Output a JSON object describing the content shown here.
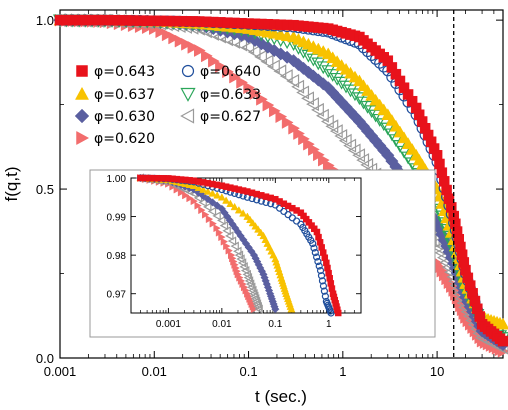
{
  "chart_data": [
    {
      "type": "scatter",
      "xlabel": "t (sec.)",
      "ylabel": "f(q,t)",
      "xscale": "log",
      "xlim": [
        0.001,
        50
      ],
      "ylim": [
        0.0,
        1.03
      ],
      "x_ticks": [
        "0.001",
        "0.01",
        "0.1",
        "1",
        "10"
      ],
      "y_ticks": [
        "0.0",
        "0.5",
        "1.0"
      ],
      "grid": false,
      "legend_placement": "upper-left, two columns",
      "annotations": [
        {
          "type": "vertical-dashed-line",
          "x": 15
        }
      ],
      "series": [
        {
          "name": "φ=0.643",
          "marker": "filled-square",
          "color": "#e8121b",
          "x": [
            0.001,
            0.003,
            0.01,
            0.03,
            0.1,
            0.3,
            0.7,
            1.5,
            3,
            6,
            10,
            15,
            20,
            30,
            50
          ],
          "y": [
            1.0,
            1.0,
            0.998,
            0.996,
            0.99,
            0.985,
            0.975,
            0.95,
            0.88,
            0.74,
            0.6,
            0.42,
            0.26,
            0.1,
            0.05
          ]
        },
        {
          "name": "φ=0.640",
          "marker": "open-circle",
          "color": "#1f4e9c",
          "x": [
            0.001,
            0.003,
            0.01,
            0.03,
            0.1,
            0.3,
            0.7,
            1.5,
            3,
            6,
            10,
            15,
            20,
            30,
            50
          ],
          "y": [
            1.0,
            1.0,
            0.998,
            0.995,
            0.988,
            0.98,
            0.965,
            0.93,
            0.85,
            0.72,
            0.58,
            0.4,
            0.25,
            0.1,
            0.05
          ]
        },
        {
          "name": "φ=0.637",
          "marker": "filled-triangle-up",
          "color": "#f8c200",
          "x": [
            0.001,
            0.003,
            0.01,
            0.03,
            0.1,
            0.3,
            0.7,
            1.5,
            3,
            6,
            10,
            15,
            20,
            30,
            50
          ],
          "y": [
            1.0,
            1.0,
            0.997,
            0.99,
            0.975,
            0.95,
            0.9,
            0.82,
            0.72,
            0.6,
            0.5,
            0.35,
            0.22,
            0.12,
            0.1
          ]
        },
        {
          "name": "φ=0.633",
          "marker": "open-triangle-down",
          "color": "#2ba65a",
          "x": [
            0.001,
            0.003,
            0.01,
            0.03,
            0.1,
            0.3,
            0.7,
            1.5,
            3,
            6,
            10,
            15,
            20,
            30,
            50
          ],
          "y": [
            1.0,
            0.999,
            0.996,
            0.988,
            0.97,
            0.93,
            0.85,
            0.77,
            0.68,
            0.56,
            0.46,
            0.32,
            0.2,
            0.1,
            0.06
          ]
        },
        {
          "name": "φ=0.630",
          "marker": "filled-diamond",
          "color": "#5a5fa0",
          "x": [
            0.001,
            0.003,
            0.01,
            0.03,
            0.1,
            0.3,
            0.7,
            1.5,
            3,
            6,
            10,
            15,
            20,
            30,
            50
          ],
          "y": [
            1.0,
            0.999,
            0.995,
            0.985,
            0.95,
            0.88,
            0.8,
            0.7,
            0.6,
            0.48,
            0.4,
            0.28,
            0.18,
            0.08,
            0.04
          ]
        },
        {
          "name": "φ=0.627",
          "marker": "open-triangle-left",
          "color": "#9a9a9a",
          "x": [
            0.001,
            0.003,
            0.01,
            0.03,
            0.1,
            0.3,
            0.7,
            1.5,
            3,
            6,
            10,
            15,
            20,
            30,
            50
          ],
          "y": [
            1.0,
            0.998,
            0.993,
            0.975,
            0.92,
            0.82,
            0.7,
            0.6,
            0.5,
            0.4,
            0.34,
            0.24,
            0.15,
            0.06,
            0.03
          ]
        },
        {
          "name": "φ=0.620",
          "marker": "filled-triangle-right",
          "color": "#f26d6d",
          "x": [
            0.001,
            0.003,
            0.01,
            0.03,
            0.1,
            0.3,
            0.7,
            1.5,
            3,
            6,
            10,
            15,
            20,
            30,
            50
          ],
          "y": [
            1.0,
            0.995,
            0.975,
            0.91,
            0.8,
            0.68,
            0.57,
            0.48,
            0.4,
            0.32,
            0.28,
            0.2,
            0.12,
            0.05,
            0.02
          ]
        }
      ]
    },
    {
      "type": "scatter",
      "xscale": "log",
      "xlim": [
        0.0002,
        4
      ],
      "ylim": [
        0.965,
        1.0
      ],
      "x_ticks": [
        "0.001",
        "0.01",
        "0.1",
        "1"
      ],
      "y_ticks": [
        "0.97",
        "0.98",
        "0.99",
        "1.00"
      ],
      "grid": false,
      "series": [
        {
          "ref": "φ=0.643",
          "x": [
            0.0003,
            0.001,
            0.003,
            0.01,
            0.03,
            0.1,
            0.3,
            0.6,
            0.9,
            1.2,
            1.5
          ],
          "y": [
            1.0,
            0.9999,
            0.9993,
            0.998,
            0.9965,
            0.9945,
            0.991,
            0.986,
            0.978,
            0.97,
            0.965
          ]
        },
        {
          "ref": "φ=0.640",
          "x": [
            0.0003,
            0.001,
            0.003,
            0.01,
            0.03,
            0.1,
            0.3,
            0.5,
            0.7,
            0.9,
            1.1
          ],
          "y": [
            1.0,
            0.9998,
            0.999,
            0.997,
            0.995,
            0.993,
            0.988,
            0.983,
            0.976,
            0.968,
            0.965
          ]
        },
        {
          "ref": "φ=0.637",
          "x": [
            0.0003,
            0.001,
            0.003,
            0.01,
            0.03,
            0.06,
            0.1,
            0.13,
            0.16,
            0.2
          ],
          "y": [
            1.0,
            0.9995,
            0.998,
            0.995,
            0.99,
            0.985,
            0.979,
            0.974,
            0.97,
            0.966
          ]
        },
        {
          "ref": "φ=0.630",
          "x": [
            0.0003,
            0.001,
            0.003,
            0.01,
            0.02,
            0.04,
            0.06,
            0.08,
            0.1
          ],
          "y": [
            1.0,
            0.9993,
            0.997,
            0.992,
            0.986,
            0.98,
            0.975,
            0.97,
            0.966
          ]
        },
        {
          "ref": "φ=0.627",
          "x": [
            0.0003,
            0.001,
            0.003,
            0.01,
            0.02,
            0.03,
            0.04,
            0.05
          ],
          "y": [
            1.0,
            0.999,
            0.996,
            0.989,
            0.981,
            0.975,
            0.97,
            0.966
          ]
        },
        {
          "ref": "φ=0.620",
          "x": [
            0.0003,
            0.001,
            0.003,
            0.008,
            0.015,
            0.02,
            0.03,
            0.04
          ],
          "y": [
            1.0,
            0.9985,
            0.994,
            0.987,
            0.98,
            0.975,
            0.97,
            0.966
          ]
        }
      ]
    }
  ]
}
